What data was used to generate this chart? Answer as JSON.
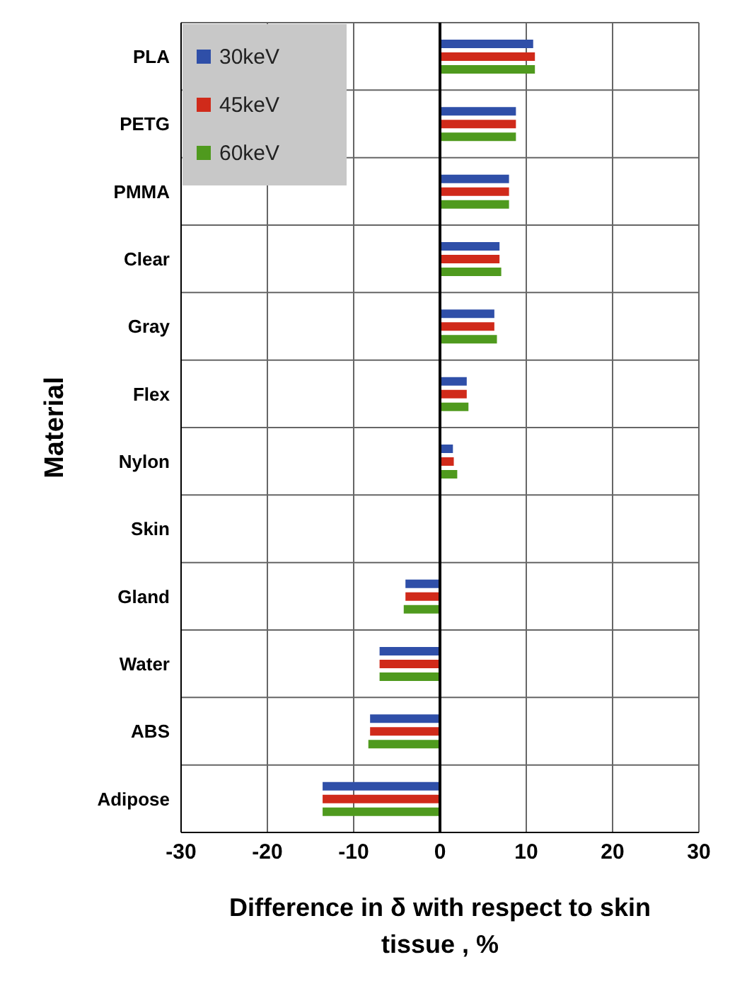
{
  "chart_data": {
    "type": "bar",
    "orientation": "horizontal",
    "xlabel": "Difference in δ with respect to skin tissue , %",
    "ylabel": "Material",
    "categories": [
      "PLA",
      "PETG",
      "PMMA",
      "Clear",
      "Gray",
      "Flex",
      "Nylon",
      "Skin",
      "Gland",
      "Water",
      "ABS",
      "Adipose"
    ],
    "series": [
      {
        "name": "30keV",
        "color": "#2f4fa8",
        "values": [
          10.8,
          8.8,
          8.0,
          6.9,
          6.3,
          3.1,
          1.5,
          0,
          -4.0,
          -7.0,
          -8.1,
          -13.6
        ]
      },
      {
        "name": "45keV",
        "color": "#d02a1a",
        "values": [
          11.0,
          8.8,
          8.0,
          6.9,
          6.3,
          3.1,
          1.6,
          0,
          -4.0,
          -7.0,
          -8.1,
          -13.6
        ]
      },
      {
        "name": "60keV",
        "color": "#4f9a1e",
        "values": [
          11.0,
          8.8,
          8.0,
          7.1,
          6.6,
          3.3,
          2.0,
          0,
          -4.2,
          -7.0,
          -8.3,
          -13.6
        ]
      }
    ],
    "xlim": [
      -30,
      30
    ],
    "xticks": [
      -30,
      -20,
      -10,
      0,
      10,
      20,
      30
    ],
    "grid": true,
    "legend": "top left"
  }
}
